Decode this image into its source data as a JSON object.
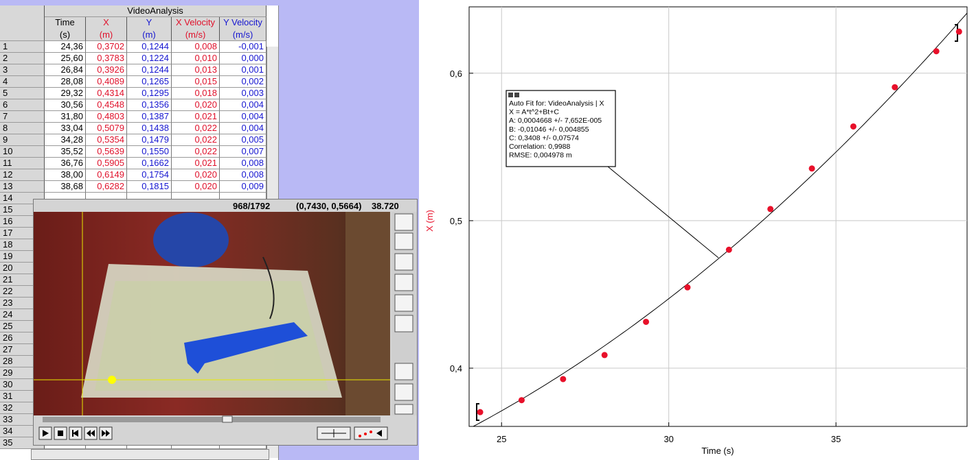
{
  "table": {
    "title": "VideoAnalysis",
    "columns": [
      {
        "name": "Time",
        "unit": "(s)"
      },
      {
        "name": "X",
        "unit": "(m)"
      },
      {
        "name": "Y",
        "unit": "(m)"
      },
      {
        "name": "X Velocity",
        "unit": "(m/s)"
      },
      {
        "name": "Y Velocity",
        "unit": "(m/s)"
      }
    ],
    "row_numbers": [
      "1",
      "2",
      "3",
      "4",
      "5",
      "6",
      "7",
      "8",
      "9",
      "10",
      "11",
      "12",
      "13",
      "14",
      "15",
      "16",
      "17",
      "18",
      "19",
      "20",
      "21",
      "22",
      "23",
      "24",
      "25",
      "26",
      "27",
      "28",
      "29",
      "30",
      "31",
      "32",
      "33",
      "34",
      "35"
    ],
    "rows": [
      [
        "24,36",
        "0,3702",
        "0,1244",
        "0,008",
        "-0,001"
      ],
      [
        "25,60",
        "0,3783",
        "0,1224",
        "0,010",
        "0,000"
      ],
      [
        "26,84",
        "0,3926",
        "0,1244",
        "0,013",
        "0,001"
      ],
      [
        "28,08",
        "0,4089",
        "0,1265",
        "0,015",
        "0,002"
      ],
      [
        "29,32",
        "0,4314",
        "0,1295",
        "0,018",
        "0,003"
      ],
      [
        "30,56",
        "0,4548",
        "0,1356",
        "0,020",
        "0,004"
      ],
      [
        "31,80",
        "0,4803",
        "0,1387",
        "0,021",
        "0,004"
      ],
      [
        "33,04",
        "0,5079",
        "0,1438",
        "0,022",
        "0,004"
      ],
      [
        "34,28",
        "0,5354",
        "0,1479",
        "0,022",
        "0,005"
      ],
      [
        "35,52",
        "0,5639",
        "0,1550",
        "0,022",
        "0,007"
      ],
      [
        "36,76",
        "0,5905",
        "0,1662",
        "0,021",
        "0,008"
      ],
      [
        "38,00",
        "0,6149",
        "0,1754",
        "0,020",
        "0,008"
      ],
      [
        "38,68",
        "0,6282",
        "0,1815",
        "0,020",
        "0,009"
      ]
    ]
  },
  "video": {
    "frame": "968/1792",
    "coordinates": "(0,7430, 0,5664)",
    "time": "38.720"
  },
  "chart_data": {
    "type": "scatter",
    "x_label": "Time (s)",
    "y_label": "X (m)",
    "x": [
      24.36,
      25.6,
      26.84,
      28.08,
      29.32,
      30.56,
      31.8,
      33.04,
      34.28,
      35.52,
      36.76,
      38.0,
      38.68
    ],
    "values": [
      0.3702,
      0.3783,
      0.3926,
      0.4089,
      0.4314,
      0.4548,
      0.4803,
      0.5079,
      0.5354,
      0.5639,
      0.5905,
      0.6149,
      0.6282
    ],
    "color": "#e8102a",
    "xlim": [
      24.03,
      38.92
    ],
    "ylim": [
      0.3605,
      0.645
    ],
    "xticks": [
      25,
      30,
      35
    ],
    "yticks": [
      {
        "value": 0.4,
        "label": "0,4"
      },
      {
        "value": 0.5,
        "label": "0,5"
      },
      {
        "value": 0.6,
        "label": "0,6"
      }
    ],
    "grid": true,
    "fit_coefficients": [
      0.0004668,
      -0.01046,
      0.3408
    ],
    "fit_annotation": [
      "Auto Fit for: VideoAnalysis | X",
      "X = A*t^2+Bt+C",
      "A: 0,0004668 +/- 7,652E-005",
      "B: -0,01046 +/- 0,004855",
      "C: 0,3408 +/- 0,07574",
      "Correlation: 0,9988",
      "RMSE: 0,004978 m"
    ]
  }
}
